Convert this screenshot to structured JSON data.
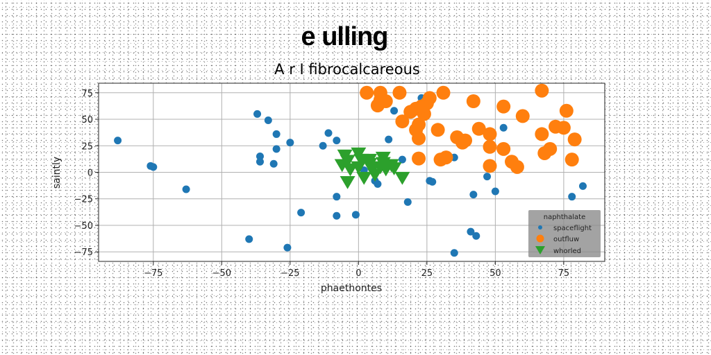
{
  "chart_data": {
    "type": "scatter",
    "title": "e ulling",
    "subtitle": "A r I fibrocalcareous",
    "xlabel": "phaethontes",
    "ylabel": "saintly",
    "xlim": [
      -95,
      90
    ],
    "ylim": [
      -84,
      84
    ],
    "xticks": [
      -75,
      -50,
      -25,
      0,
      25,
      50,
      75
    ],
    "yticks": [
      -75,
      -50,
      -25,
      0,
      25,
      50,
      75
    ],
    "grid": true,
    "legend": {
      "title": "naphthalate",
      "placement": "lower-right"
    },
    "series": [
      {
        "name": "spaceflight",
        "color": "#1f77b4",
        "marker": "circle",
        "points": [
          [
            -88,
            30
          ],
          [
            -76,
            6
          ],
          [
            -75,
            5
          ],
          [
            -63,
            -16
          ],
          [
            -40,
            -63
          ],
          [
            -37,
            55
          ],
          [
            -36,
            15
          ],
          [
            -36,
            10
          ],
          [
            -33,
            49
          ],
          [
            -30,
            36
          ],
          [
            -30,
            22
          ],
          [
            -31,
            8
          ],
          [
            -25,
            28
          ],
          [
            -21,
            -38
          ],
          [
            -26,
            -71
          ],
          [
            -13,
            25
          ],
          [
            -11,
            37
          ],
          [
            -8,
            30
          ],
          [
            -8,
            -23
          ],
          [
            -8,
            -41
          ],
          [
            -1,
            -40
          ],
          [
            2,
            2
          ],
          [
            6,
            -8
          ],
          [
            7,
            -11
          ],
          [
            11,
            31
          ],
          [
            13,
            58
          ],
          [
            16,
            12
          ],
          [
            18,
            -28
          ],
          [
            23,
            70
          ],
          [
            26,
            -8
          ],
          [
            27,
            -9
          ],
          [
            35,
            14
          ],
          [
            35,
            -76
          ],
          [
            41,
            -56
          ],
          [
            42,
            -21
          ],
          [
            43,
            -60
          ],
          [
            47,
            -4
          ],
          [
            50,
            -18
          ],
          [
            53,
            42
          ],
          [
            74,
            44
          ],
          [
            78,
            -23
          ],
          [
            82,
            -13
          ]
        ]
      },
      {
        "name": "outfluw",
        "color": "#ff7f0e",
        "marker": "circle",
        "points": [
          [
            3,
            75
          ],
          [
            8,
            75
          ],
          [
            8,
            68
          ],
          [
            7,
            63
          ],
          [
            10,
            67
          ],
          [
            15,
            75
          ],
          [
            16,
            48
          ],
          [
            19,
            57
          ],
          [
            21,
            60
          ],
          [
            22,
            45
          ],
          [
            21,
            40
          ],
          [
            22,
            32
          ],
          [
            24,
            55
          ],
          [
            25,
            65
          ],
          [
            26,
            70
          ],
          [
            23,
            62
          ],
          [
            22,
            13
          ],
          [
            29,
            40
          ],
          [
            31,
            75
          ],
          [
            30,
            12
          ],
          [
            32,
            14
          ],
          [
            36,
            33
          ],
          [
            38,
            28
          ],
          [
            39,
            30
          ],
          [
            42,
            67
          ],
          [
            44,
            41
          ],
          [
            48,
            36
          ],
          [
            48,
            24
          ],
          [
            48,
            6
          ],
          [
            53,
            62
          ],
          [
            53,
            22
          ],
          [
            56,
            10
          ],
          [
            58,
            5
          ],
          [
            60,
            53
          ],
          [
            67,
            77
          ],
          [
            67,
            36
          ],
          [
            68,
            18
          ],
          [
            70,
            22
          ],
          [
            72,
            43
          ],
          [
            75,
            42
          ],
          [
            76,
            58
          ],
          [
            78,
            12
          ],
          [
            79,
            31
          ]
        ]
      },
      {
        "name": "whorled",
        "color": "#2ca02c",
        "marker": "triangle-down",
        "points": [
          [
            -5,
            16
          ],
          [
            -4,
            11
          ],
          [
            -6,
            7
          ],
          [
            -3,
            3
          ],
          [
            -4,
            -9
          ],
          [
            0,
            18
          ],
          [
            1,
            12
          ],
          [
            0,
            5
          ],
          [
            2,
            -5
          ],
          [
            4,
            12
          ],
          [
            4,
            8
          ],
          [
            5,
            3
          ],
          [
            6,
            -2
          ],
          [
            8,
            5
          ],
          [
            9,
            14
          ],
          [
            9,
            9
          ],
          [
            10,
            3
          ],
          [
            12,
            7
          ],
          [
            13,
            4
          ],
          [
            16,
            -5
          ]
        ]
      }
    ]
  }
}
